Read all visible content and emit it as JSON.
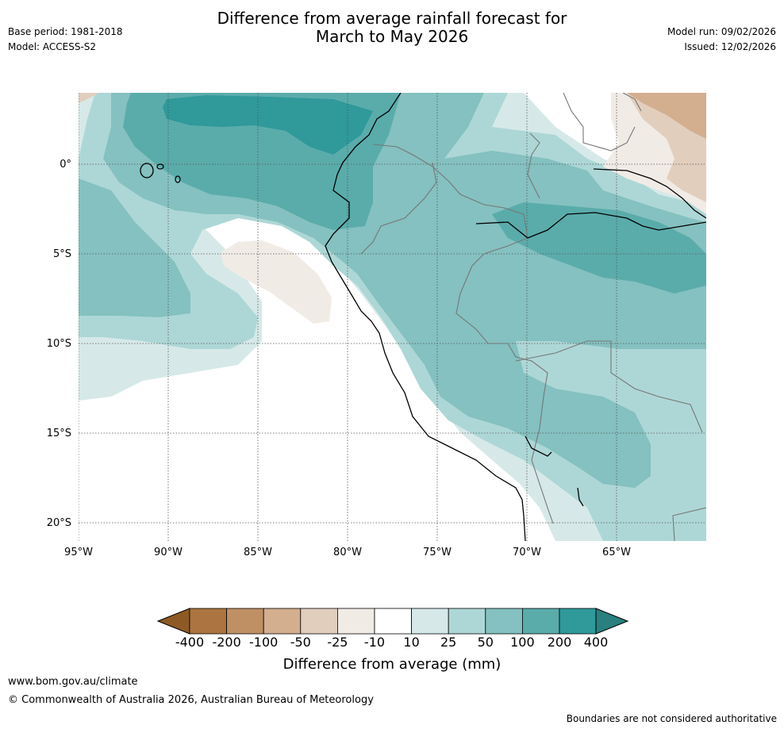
{
  "header": {
    "base_period": "Base period: 1981-2018",
    "model": "Model: ACCESS-S2",
    "title_line1": "Difference from average rainfall forecast for",
    "title_line2": "March to May 2026",
    "model_run": "Model run: 09/02/2026",
    "issued": "Issued: 12/02/2026"
  },
  "map": {
    "lat_labels": [
      "0°",
      "5°S",
      "10°S",
      "15°S",
      "20°S"
    ],
    "lon_labels": [
      "95°W",
      "90°W",
      "85°W",
      "80°W",
      "75°W",
      "70°W",
      "65°W"
    ]
  },
  "colorbar": {
    "title": "Difference from average (mm)",
    "labels": [
      "-400",
      "-200",
      "-100",
      "-50",
      "-25",
      "-10",
      "10",
      "25",
      "50",
      "100",
      "200",
      "400"
    ],
    "colors": [
      "#8e5a24",
      "#ac7440",
      "#c09065",
      "#d3ae8f",
      "#e2cebd",
      "#f1ebe6",
      "#ffffff",
      "#d6e9e8",
      "#add7d6",
      "#84c1c0",
      "#5aacab",
      "#30999a",
      "#2a7f7f"
    ]
  },
  "footer": {
    "website": "www.bom.gov.au/climate",
    "copyright": "© Commonwealth of Australia 2026, Australian Bureau of Meteorology",
    "disclaimer": "Boundaries are not considered authoritative"
  }
}
